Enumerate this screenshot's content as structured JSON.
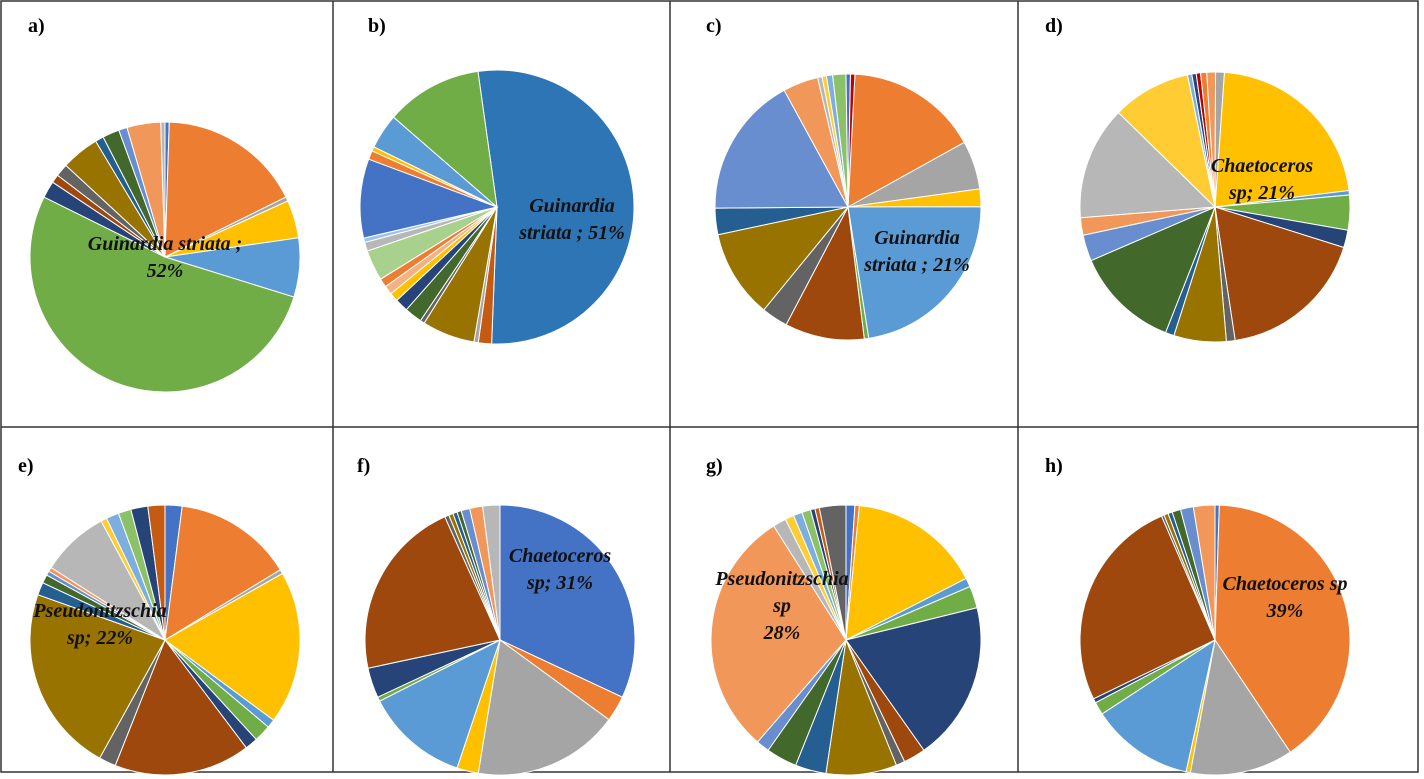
{
  "chart_data": [
    {
      "type": "pie",
      "panel": "a)",
      "label_lines": [
        "Guinardia striata ;",
        "52%"
      ],
      "slices": [
        [
          0.5,
          "#4472C4"
        ],
        [
          17,
          "#ED7D31"
        ],
        [
          0.5,
          "#A5A5A5"
        ],
        [
          4.5,
          "#FFC000"
        ],
        [
          7,
          "#5B9BD5"
        ],
        [
          52,
          "#70AD47"
        ],
        [
          2,
          "#264478"
        ],
        [
          1,
          "#9E480E"
        ],
        [
          1.5,
          "#636363"
        ],
        [
          4.5,
          "#997300"
        ],
        [
          1,
          "#255E91"
        ],
        [
          2,
          "#43682B"
        ],
        [
          1,
          "#698ED0"
        ],
        [
          4,
          "#F1975A"
        ],
        [
          0.5,
          "#B7B7B7"
        ]
      ]
    },
    {
      "type": "pie",
      "panel": "b)",
      "label_lines": [
        "Guinardia",
        "striata ; 51%"
      ],
      "slices": [
        [
          51,
          "#2E75B6"
        ],
        [
          1.5,
          "#C55A11"
        ],
        [
          0.5,
          "#A5A5A5"
        ],
        [
          6,
          "#997300"
        ],
        [
          0.5,
          "#636363"
        ],
        [
          2,
          "#43682B"
        ],
        [
          1.5,
          "#264478"
        ],
        [
          1,
          "#FFC000"
        ],
        [
          1,
          "#F4B183"
        ],
        [
          1,
          "#ED7D31"
        ],
        [
          3.5,
          "#A9D18E"
        ],
        [
          1,
          "#B7B7B7"
        ],
        [
          0.5,
          "#9DC3E6"
        ],
        [
          9,
          "#4472C4"
        ],
        [
          1,
          "#ED7D31"
        ],
        [
          0.5,
          "#FFC000"
        ],
        [
          4,
          "#5B9BD5"
        ],
        [
          11,
          "#70AD47"
        ]
      ]
    },
    {
      "type": "pie",
      "panel": "c)",
      "label_lines": [
        "Guinardia",
        "striata ; 21%"
      ],
      "slices": [
        [
          15,
          "#ED7D31"
        ],
        [
          5.5,
          "#A5A5A5"
        ],
        [
          2,
          "#FFC000"
        ],
        [
          21,
          "#5B9BD5"
        ],
        [
          0.5,
          "#70AD47"
        ],
        [
          9,
          "#9E480E"
        ],
        [
          3,
          "#636363"
        ],
        [
          10,
          "#997300"
        ],
        [
          3,
          "#255E91"
        ],
        [
          16,
          "#698ED0"
        ],
        [
          4,
          "#F1975A"
        ],
        [
          0.5,
          "#B7B7B7"
        ],
        [
          0.5,
          "#FFCD33"
        ],
        [
          0.7,
          "#7CAFDD"
        ],
        [
          1.5,
          "#8CC168"
        ],
        [
          0.5,
          "#4472C4"
        ],
        [
          0.5,
          "#C00000"
        ]
      ]
    },
    {
      "type": "pie",
      "panel": "d)",
      "label_lines": [
        "Chaetoceros",
        "sp; 21%"
      ],
      "slices": [
        [
          21,
          "#FFC000"
        ],
        [
          0.5,
          "#5B9BD5"
        ],
        [
          4,
          "#70AD47"
        ],
        [
          2,
          "#264478"
        ],
        [
          17,
          "#9E480E"
        ],
        [
          1,
          "#636363"
        ],
        [
          6,
          "#997300"
        ],
        [
          1,
          "#255E91"
        ],
        [
          12,
          "#43682B"
        ],
        [
          3,
          "#698ED0"
        ],
        [
          2,
          "#F1975A"
        ],
        [
          13,
          "#B7B7B7"
        ],
        [
          9,
          "#FFCD33"
        ],
        [
          0.5,
          "#7CAFDD"
        ],
        [
          0.5,
          "#264478"
        ],
        [
          0.5,
          "#C00000"
        ],
        [
          0.7,
          "#ED7D31"
        ],
        [
          1,
          "#F1975A"
        ],
        [
          1,
          "#A5A5A5"
        ]
      ]
    },
    {
      "type": "pie",
      "panel": "e)",
      "label_lines": [
        "Pseudonitzschia",
        "sp; 22%"
      ],
      "slices": [
        [
          2,
          "#4472C4"
        ],
        [
          14,
          "#ED7D31"
        ],
        [
          0.5,
          "#A5A5A5"
        ],
        [
          18,
          "#FFC000"
        ],
        [
          1,
          "#5B9BD5"
        ],
        [
          2,
          "#70AD47"
        ],
        [
          1.5,
          "#264478"
        ],
        [
          16,
          "#9E480E"
        ],
        [
          2,
          "#636363"
        ],
        [
          22,
          "#997300"
        ],
        [
          1.5,
          "#255E91"
        ],
        [
          1,
          "#43682B"
        ],
        [
          0.5,
          "#698ED0"
        ],
        [
          0.5,
          "#F1975A"
        ],
        [
          8,
          "#B7B7B7"
        ],
        [
          0.7,
          "#FFCD33"
        ],
        [
          1.5,
          "#7CAFDD"
        ],
        [
          1.5,
          "#8CC168"
        ],
        [
          2,
          "#264478"
        ],
        [
          2,
          "#C55A11"
        ]
      ]
    },
    {
      "type": "pie",
      "panel": "f)",
      "label_lines": [
        "Chaetoceros",
        "sp; 31%"
      ],
      "slices": [
        [
          31,
          "#4472C4"
        ],
        [
          3,
          "#ED7D31"
        ],
        [
          17,
          "#A5A5A5"
        ],
        [
          2.5,
          "#FFC000"
        ],
        [
          12,
          "#5B9BD5"
        ],
        [
          0.5,
          "#70AD47"
        ],
        [
          3.5,
          "#264478"
        ],
        [
          21,
          "#9E480E"
        ],
        [
          0.5,
          "#636363"
        ],
        [
          0.5,
          "#997300"
        ],
        [
          0.5,
          "#255E91"
        ],
        [
          0.5,
          "#43682B"
        ],
        [
          1,
          "#698ED0"
        ],
        [
          1.5,
          "#F1975A"
        ],
        [
          2,
          "#B7B7B7"
        ]
      ]
    },
    {
      "type": "pie",
      "panel": "g)",
      "label_lines": [
        "Pseudonitzschia",
        "sp",
        "28%"
      ],
      "slices": [
        [
          1,
          "#4472C4"
        ],
        [
          0.5,
          "#ED7D31"
        ],
        [
          15,
          "#FFC000"
        ],
        [
          1,
          "#5B9BD5"
        ],
        [
          2.5,
          "#70AD47"
        ],
        [
          18,
          "#264478"
        ],
        [
          2.5,
          "#9E480E"
        ],
        [
          1,
          "#636363"
        ],
        [
          8,
          "#997300"
        ],
        [
          3.5,
          "#255E91"
        ],
        [
          3.5,
          "#43682B"
        ],
        [
          1.5,
          "#698ED0"
        ],
        [
          28,
          "#F1975A"
        ],
        [
          1.5,
          "#B7B7B7"
        ],
        [
          1,
          "#FFCD33"
        ],
        [
          1,
          "#7CAFDD"
        ],
        [
          1,
          "#8CC168"
        ],
        [
          0.5,
          "#264478"
        ],
        [
          0.5,
          "#C55A11"
        ],
        [
          3,
          "#636363"
        ]
      ]
    },
    {
      "type": "pie",
      "panel": "h)",
      "label_lines": [
        "Chaetoceros sp",
        "39%"
      ],
      "slices": [
        [
          0.5,
          "#4472C4"
        ],
        [
          39,
          "#ED7D31"
        ],
        [
          12,
          "#A5A5A5"
        ],
        [
          0.5,
          "#FFC000"
        ],
        [
          12,
          "#5B9BD5"
        ],
        [
          1.5,
          "#70AD47"
        ],
        [
          0.5,
          "#264478"
        ],
        [
          25,
          "#9E480E"
        ],
        [
          0.3,
          "#636363"
        ],
        [
          0.5,
          "#997300"
        ],
        [
          0.5,
          "#255E91"
        ],
        [
          1,
          "#43682B"
        ],
        [
          1.5,
          "#698ED0"
        ],
        [
          2.5,
          "#F1975A"
        ]
      ]
    }
  ]
}
